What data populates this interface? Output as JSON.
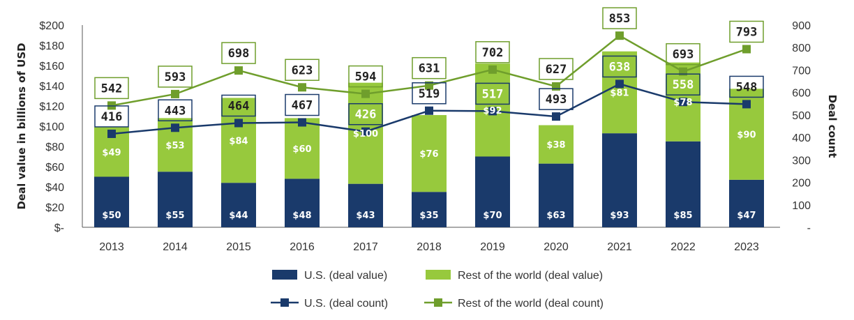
{
  "chart_data": {
    "type": "bar",
    "stacked": true,
    "categories": [
      "2013",
      "2014",
      "2015",
      "2016",
      "2017",
      "2018",
      "2019",
      "2020",
      "2021",
      "2022",
      "2023"
    ],
    "series": [
      {
        "name": "U.S. (deal value)",
        "type": "bar",
        "axis": "left",
        "color": "#1a3a6b",
        "values": [
          50,
          55,
          44,
          48,
          43,
          35,
          70,
          63,
          93,
          85,
          47
        ],
        "labels": [
          "$50",
          "$55",
          "$44",
          "$48",
          "$43",
          "$35",
          "$70",
          "$63",
          "$93",
          "$85",
          "$47"
        ]
      },
      {
        "name": "Rest of the world (deal value)",
        "type": "bar",
        "axis": "left",
        "color": "#97c93d",
        "values": [
          49,
          53,
          84,
          60,
          100,
          76,
          92,
          38,
          81,
          78,
          90
        ],
        "labels": [
          "$49",
          "$53",
          "$84",
          "$60",
          "$100",
          "$76",
          "$92",
          "$38",
          "$81",
          "$78",
          "$90"
        ]
      },
      {
        "name": "U.S. (deal count)",
        "type": "line",
        "axis": "right",
        "color": "#1a3a6b",
        "values": [
          416,
          443,
          464,
          467,
          426,
          519,
          517,
          493,
          638,
          558,
          548
        ],
        "labels": [
          "416",
          "443",
          "464",
          "467",
          "426",
          "519",
          "517",
          "493",
          "638",
          "558",
          "548"
        ]
      },
      {
        "name": "Rest of the world (deal count)",
        "type": "line",
        "axis": "right",
        "color": "#6f9e2c",
        "values": [
          542,
          593,
          698,
          623,
          594,
          631,
          702,
          627,
          853,
          693,
          793
        ],
        "labels": [
          "542",
          "593",
          "698",
          "623",
          "594",
          "631",
          "702",
          "627",
          "853",
          "693",
          "793"
        ]
      }
    ],
    "ylabel": "Deal value in billions of USD",
    "y2label": "Deal count",
    "ylim": [
      0,
      200
    ],
    "y2lim": [
      0,
      900
    ],
    "yticks": [
      "$-",
      "$20",
      "$40",
      "$60",
      "$80",
      "$100",
      "$120",
      "$140",
      "$160",
      "$180",
      "$200"
    ],
    "y2ticks": [
      "-",
      "100",
      "200",
      "300",
      "400",
      "500",
      "600",
      "700",
      "800",
      "900"
    ],
    "grid": false,
    "legend": "bottom"
  }
}
